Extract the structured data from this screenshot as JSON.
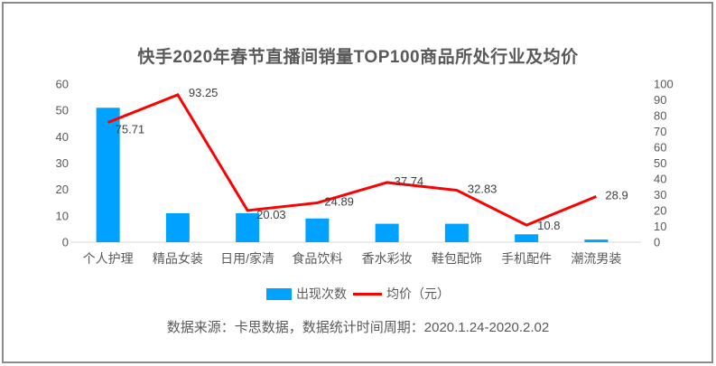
{
  "chart_data": {
    "type": "combo",
    "title": "快手2020年春节直播间销量TOP100商品所处行业及均价",
    "categories": [
      "个人护理",
      "精品女装",
      "日用/家清",
      "食品饮料",
      "香水彩妆",
      "鞋包配饰",
      "手机配件",
      "潮流男装"
    ],
    "series": [
      {
        "name": "出现次数",
        "type": "bar",
        "axis": "left",
        "color": "#00A2FF",
        "values": [
          51,
          11,
          11,
          9,
          7,
          7,
          3,
          1
        ]
      },
      {
        "name": "均价（元）",
        "type": "line",
        "axis": "right",
        "color": "#FF0000",
        "values": [
          75.71,
          93.25,
          20.03,
          24.89,
          37.74,
          32.83,
          10.8,
          28.9
        ],
        "data_labels_shown": true
      }
    ],
    "left_axis": {
      "min": 0,
      "max": 60,
      "step": 10
    },
    "right_axis": {
      "min": 0,
      "max": 100,
      "step": 10
    },
    "grid": false,
    "legend_position": "bottom",
    "axis_line_color": "#D9D9D9"
  },
  "legend": {
    "items": [
      {
        "label": "出现次数",
        "swatch": "bar-swatch"
      },
      {
        "label": "均价（元）",
        "swatch": "line-swatch"
      }
    ]
  },
  "footer": {
    "text": "数据来源：卡思数据，数据统计时间周期：2020.1.24-2020.2.02"
  }
}
